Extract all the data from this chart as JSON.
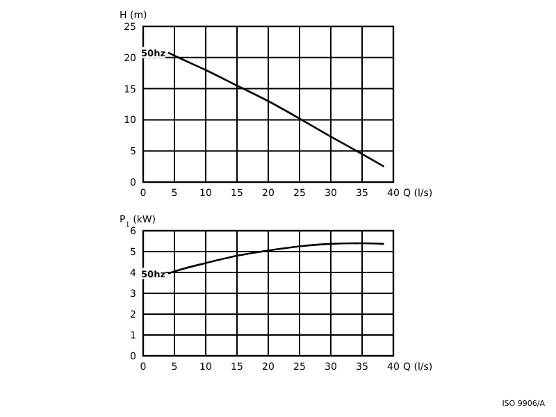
{
  "chart_data": [
    {
      "type": "line",
      "xlabel": "Q (l/s)",
      "ylabel": "H (m)",
      "xlim": [
        0,
        40
      ],
      "ylim": [
        0,
        25
      ],
      "xticks": [
        0,
        5,
        10,
        15,
        20,
        25,
        30,
        35,
        40
      ],
      "yticks": [
        0,
        5,
        10,
        15,
        20,
        25
      ],
      "grid": true,
      "series": [
        {
          "name": "50hz",
          "color": "#000000",
          "x": [
            4,
            5,
            10,
            15,
            20,
            25,
            30,
            35,
            38.5
          ],
          "values": [
            20.8,
            20.3,
            18,
            15.5,
            13,
            10.2,
            7.3,
            4.5,
            2.5
          ]
        }
      ]
    },
    {
      "type": "line",
      "xlabel": "Q (l/s)",
      "ylabel": "P$_{1}$ (kW)",
      "xlim": [
        0,
        40
      ],
      "ylim": [
        0,
        6
      ],
      "xticks": [
        0,
        5,
        10,
        15,
        20,
        25,
        30,
        35,
        40
      ],
      "yticks": [
        0,
        1,
        2,
        3,
        4,
        5,
        6
      ],
      "grid": true,
      "annotations": [
        "ISO 9906/A"
      ],
      "series": [
        {
          "name": "50hz",
          "color": "#000000",
          "x": [
            4,
            5,
            10,
            15,
            20,
            25,
            30,
            35,
            38.5
          ],
          "values": [
            3.95,
            4.05,
            4.45,
            4.8,
            5.05,
            5.25,
            5.37,
            5.4,
            5.37
          ]
        }
      ]
    }
  ]
}
